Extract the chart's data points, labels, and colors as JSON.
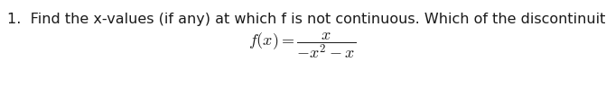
{
  "background_color": "#ffffff",
  "question_number": "1.",
  "question_text": "  Find the x-values (if any) at which f is not continuous. Which of the discontinuities are removable?",
  "formula_latex": "$f(x) = \\dfrac{x}{-x^2 - x}$",
  "question_fontsize": 11.5,
  "formula_fontsize": 13,
  "text_color": "#1a1a1a",
  "fig_width": 6.71,
  "fig_height": 0.99,
  "dpi": 100
}
